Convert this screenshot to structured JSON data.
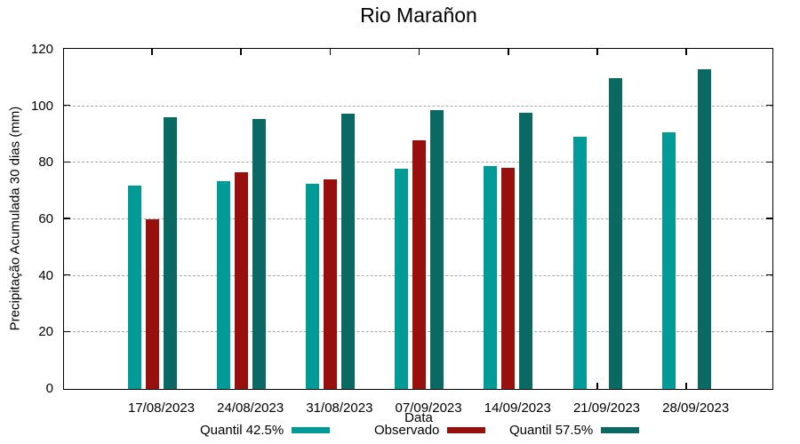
{
  "title": "Rio Marañon",
  "colors": {
    "series_quantil_425": "#009B96",
    "series_observado": "#97100E",
    "series_quantil_575": "#0A6962",
    "axis": "#000000",
    "grid": "#A6A6A6",
    "background": "#FFFFFF"
  },
  "chart_data": {
    "type": "bar",
    "title": "Rio Marañon",
    "xlabel": "Data",
    "ylabel": "Precipitação Acumulada 30 dias (mm)",
    "ylim": [
      0,
      120
    ],
    "yticks": [
      0,
      20,
      40,
      60,
      80,
      100,
      120
    ],
    "grid": true,
    "grid_style": "dashed",
    "legend_position": "bottom",
    "categories": [
      "17/08/2023",
      "24/08/2023",
      "31/08/2023",
      "07/09/2023",
      "14/09/2023",
      "21/09/2023",
      "28/09/2023"
    ],
    "series": [
      {
        "name": "Quantil 42.5%",
        "color": "#009B96",
        "values": [
          72,
          73.5,
          72.5,
          78,
          79,
          89.3,
          90.7
        ]
      },
      {
        "name": "Observado",
        "color": "#97100E",
        "values": [
          60,
          76.5,
          74,
          88,
          78.3,
          null,
          null
        ]
      },
      {
        "name": "Quantil 57.5%",
        "color": "#0A6962",
        "values": [
          96,
          95.5,
          97.5,
          98.7,
          97.8,
          109.8,
          113
        ]
      }
    ]
  },
  "legend": {
    "items": [
      {
        "label": "Quantil 42.5%",
        "color": "#009B96"
      },
      {
        "label": "Observado",
        "color": "#97100E"
      },
      {
        "label": "Quantil 57.5%",
        "color": "#0A6962"
      }
    ]
  }
}
